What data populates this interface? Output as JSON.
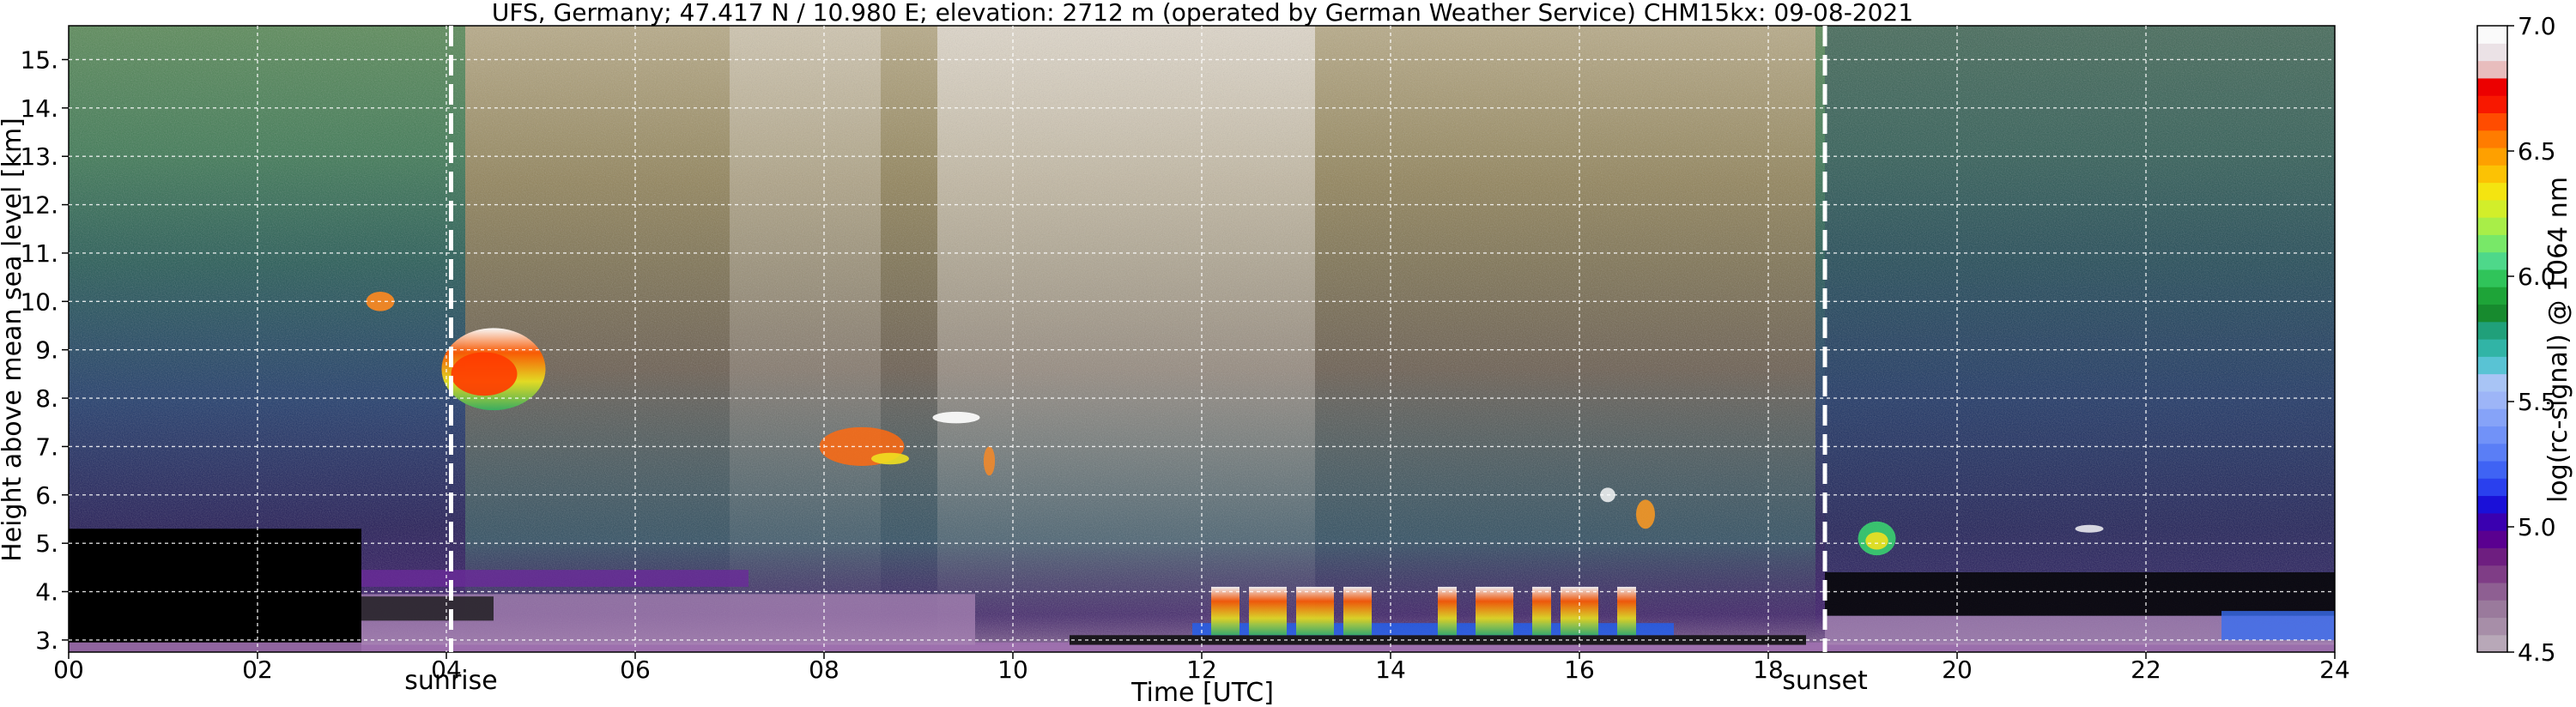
{
  "chart_data": {
    "type": "heatmap",
    "title": "UFS, Germany; 47.417 N / 10.980 E; elevation: 2712 m  (operated by German Weather Service)    CHM15kx: 09-08-2021",
    "xlabel": "Time [UTC]",
    "ylabel": "Height above mean sea level [km]",
    "xlim": [
      0,
      24
    ],
    "ylim": [
      2.75,
      15.7
    ],
    "x_ticks": [
      "00",
      "02",
      "04",
      "06",
      "08",
      "10",
      "12",
      "14",
      "16",
      "18",
      "20",
      "22",
      "24"
    ],
    "x_tick_values": [
      0,
      2,
      4,
      6,
      8,
      10,
      12,
      14,
      16,
      18,
      20,
      22,
      24
    ],
    "y_ticks": [
      "3.",
      "4.",
      "5.",
      "6.",
      "7.",
      "8.",
      "9.",
      "10.",
      "11.",
      "12.",
      "13.",
      "14.",
      "15."
    ],
    "y_tick_values": [
      3,
      4,
      5,
      6,
      7,
      8,
      9,
      10,
      11,
      12,
      13,
      14,
      15
    ],
    "grid": true,
    "markers": [
      {
        "label": "sunrise",
        "time": 4.05
      },
      {
        "label": "sunset",
        "time": 18.6
      }
    ],
    "colorbar": {
      "label": "log(rc-signal) @ 1064 nm",
      "range": [
        4.5,
        7.0
      ],
      "ticks": [
        "4.5",
        "5.0",
        "5.5",
        "6.0",
        "6.5",
        "7.0"
      ],
      "tick_values": [
        4.5,
        5.0,
        5.5,
        6.0,
        6.5,
        7.0
      ],
      "colors": [
        "#b8a8b8",
        "#a78ea8",
        "#9a7a9c",
        "#8e5f92",
        "#7f3d86",
        "#6e1e80",
        "#5a0090",
        "#3a00b0",
        "#1a10d8",
        "#2a40ee",
        "#3f63f4",
        "#5a7ef6",
        "#7192f8",
        "#86a3f8",
        "#9db5f7",
        "#a8c4f5",
        "#59c3d4",
        "#31b4a6",
        "#20a07a",
        "#178a2e",
        "#1ea438",
        "#30c45a",
        "#4ed88a",
        "#78e868",
        "#a8ee48",
        "#d2ee2a",
        "#f4e410",
        "#fcc204",
        "#fea000",
        "#ff7c00",
        "#ff4c00",
        "#f81800",
        "#ec0000",
        "#e8bdbd",
        "#ebe2e6",
        "#fafafa"
      ]
    }
  }
}
